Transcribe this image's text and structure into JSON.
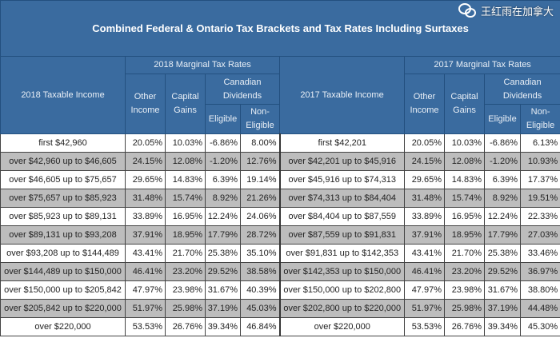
{
  "title": "Combined Federal & Ontario Tax Brackets and Tax Rates Including Surtaxes",
  "headers": {
    "y2018": {
      "group": "2018 Marginal Tax Rates",
      "income": "2018 Taxable Income"
    },
    "y2017": {
      "group": "2017 Marginal Tax Rates",
      "income": "2017 Taxable Income"
    },
    "other_income": "Other Income",
    "capital_gains": "Capital Gains",
    "canadian_dividends": "Canadian Dividends",
    "eligible": "Eligible",
    "non_eligible": "Non-Eligible"
  },
  "rows": [
    {
      "i18": "first $42,960",
      "a18": "20.05%",
      "b18": "10.03%",
      "c18": "-6.86%",
      "d18": "8.00%",
      "i17": "first $42,201",
      "a17": "20.05%",
      "b17": "10.03%",
      "c17": "-6.86%",
      "d17": "6.13%"
    },
    {
      "i18": "over $42,960 up to $46,605",
      "a18": "24.15%",
      "b18": "12.08%",
      "c18": "-1.20%",
      "d18": "12.76%",
      "i17": "over $42,201 up to $45,916",
      "a17": "24.15%",
      "b17": "12.08%",
      "c17": "-1.20%",
      "d17": "10.93%"
    },
    {
      "i18": "over $46,605 up to $75,657",
      "a18": "29.65%",
      "b18": "14.83%",
      "c18": "6.39%",
      "d18": "19.14%",
      "i17": "over $45,916 up to $74,313",
      "a17": "29.65%",
      "b17": "14.83%",
      "c17": "6.39%",
      "d17": "17.37%"
    },
    {
      "i18": "over $75,657 up to $85,923",
      "a18": "31.48%",
      "b18": "15.74%",
      "c18": "8.92%",
      "d18": "21.26%",
      "i17": "over $74,313 up to $84,404",
      "a17": "31.48%",
      "b17": "15.74%",
      "c17": "8.92%",
      "d17": "19.51%"
    },
    {
      "i18": "over $85,923 up to $89,131",
      "a18": "33.89%",
      "b18": "16.95%",
      "c18": "12.24%",
      "d18": "24.06%",
      "i17": "over $84,404 up to $87,559",
      "a17": "33.89%",
      "b17": "16.95%",
      "c17": "12.24%",
      "d17": "22.33%"
    },
    {
      "i18": "over $89,131 up to $93,208",
      "a18": "37.91%",
      "b18": "18.95%",
      "c18": "17.79%",
      "d18": "28.72%",
      "i17": "over $87,559 up to $91,831",
      "a17": "37.91%",
      "b17": "18.95%",
      "c17": "17.79%",
      "d17": "27.03%"
    },
    {
      "i18": "over $93,208 up to $144,489",
      "a18": "43.41%",
      "b18": "21.70%",
      "c18": "25.38%",
      "d18": "35.10%",
      "i17": "over $91,831 up to $142,353",
      "a17": "43.41%",
      "b17": "21.70%",
      "c17": "25.38%",
      "d17": "33.46%"
    },
    {
      "i18": "over $144,489 up to $150,000",
      "a18": "46.41%",
      "b18": "23.20%",
      "c18": "29.52%",
      "d18": "38.58%",
      "i17": "over $142,353 up to $150,000",
      "a17": "46.41%",
      "b17": "23.20%",
      "c17": "29.52%",
      "d17": "36.97%"
    },
    {
      "i18": "over $150,000 up to $205,842",
      "a18": "47.97%",
      "b18": "23.98%",
      "c18": "31.67%",
      "d18": "40.39%",
      "i17": "over $150,000 up to $202,800",
      "a17": "47.97%",
      "b17": "23.98%",
      "c17": "31.67%",
      "d17": "38.80%"
    },
    {
      "i18": "over $205,842 up to $220,000",
      "a18": "51.97%",
      "b18": "25.98%",
      "c18": "37.19%",
      "d18": "45.03%",
      "i17": "over $202,800 up to $220,000",
      "a17": "51.97%",
      "b17": "25.98%",
      "c17": "37.19%",
      "d17": "44.48%"
    },
    {
      "i18": "over $220,000",
      "a18": "53.53%",
      "b18": "26.76%",
      "c18": "39.34%",
      "d18": "46.84%",
      "i17": "over $220,000",
      "a17": "53.53%",
      "b17": "26.76%",
      "c17": "39.34%",
      "d17": "45.30%"
    }
  ],
  "watermark": "王红雨在加拿大"
}
